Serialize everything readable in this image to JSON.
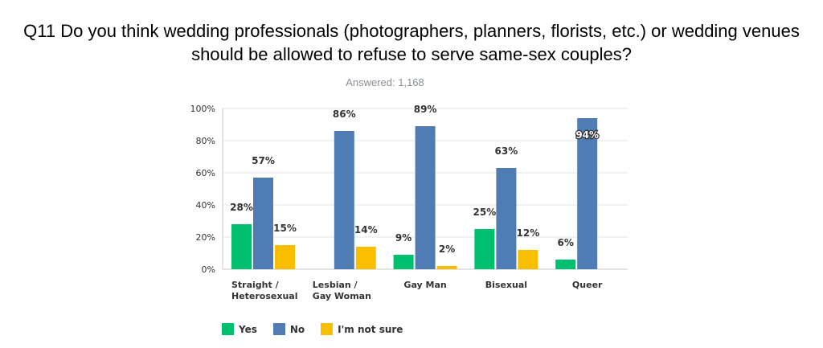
{
  "chart_data": {
    "type": "bar",
    "title": "Q11 Do you think wedding professionals (photographers, planners, florists, etc.) or wedding venues should be allowed to refuse to serve same-sex couples?",
    "subtitle": "Answered: 1,168",
    "categories": [
      [
        "Straight /",
        "Heterosexual"
      ],
      [
        "Lesbian /",
        "Gay Woman"
      ],
      [
        "Gay Man"
      ],
      [
        "Bisexual"
      ],
      [
        "Queer"
      ]
    ],
    "series": [
      {
        "name": "Yes",
        "color": "#00bf6f",
        "values": [
          28,
          0,
          9,
          25,
          6
        ],
        "labels": [
          "28%",
          "",
          "9%",
          "25%",
          "6%"
        ]
      },
      {
        "name": "No",
        "color": "#507cb6",
        "values": [
          57,
          86,
          89,
          63,
          94
        ],
        "labels": [
          "57%",
          "86%",
          "89%",
          "63%",
          "94%"
        ]
      },
      {
        "name": "I'm not sure",
        "color": "#f9be00",
        "values": [
          15,
          14,
          2,
          12,
          0
        ],
        "labels": [
          "15%",
          "14%",
          "2%",
          "12%",
          ""
        ]
      }
    ],
    "yticks": [
      "0%",
      "20%",
      "40%",
      "60%",
      "80%",
      "100%"
    ],
    "ylim": [
      0,
      100
    ],
    "grid": true,
    "legend": "bottom-left"
  }
}
